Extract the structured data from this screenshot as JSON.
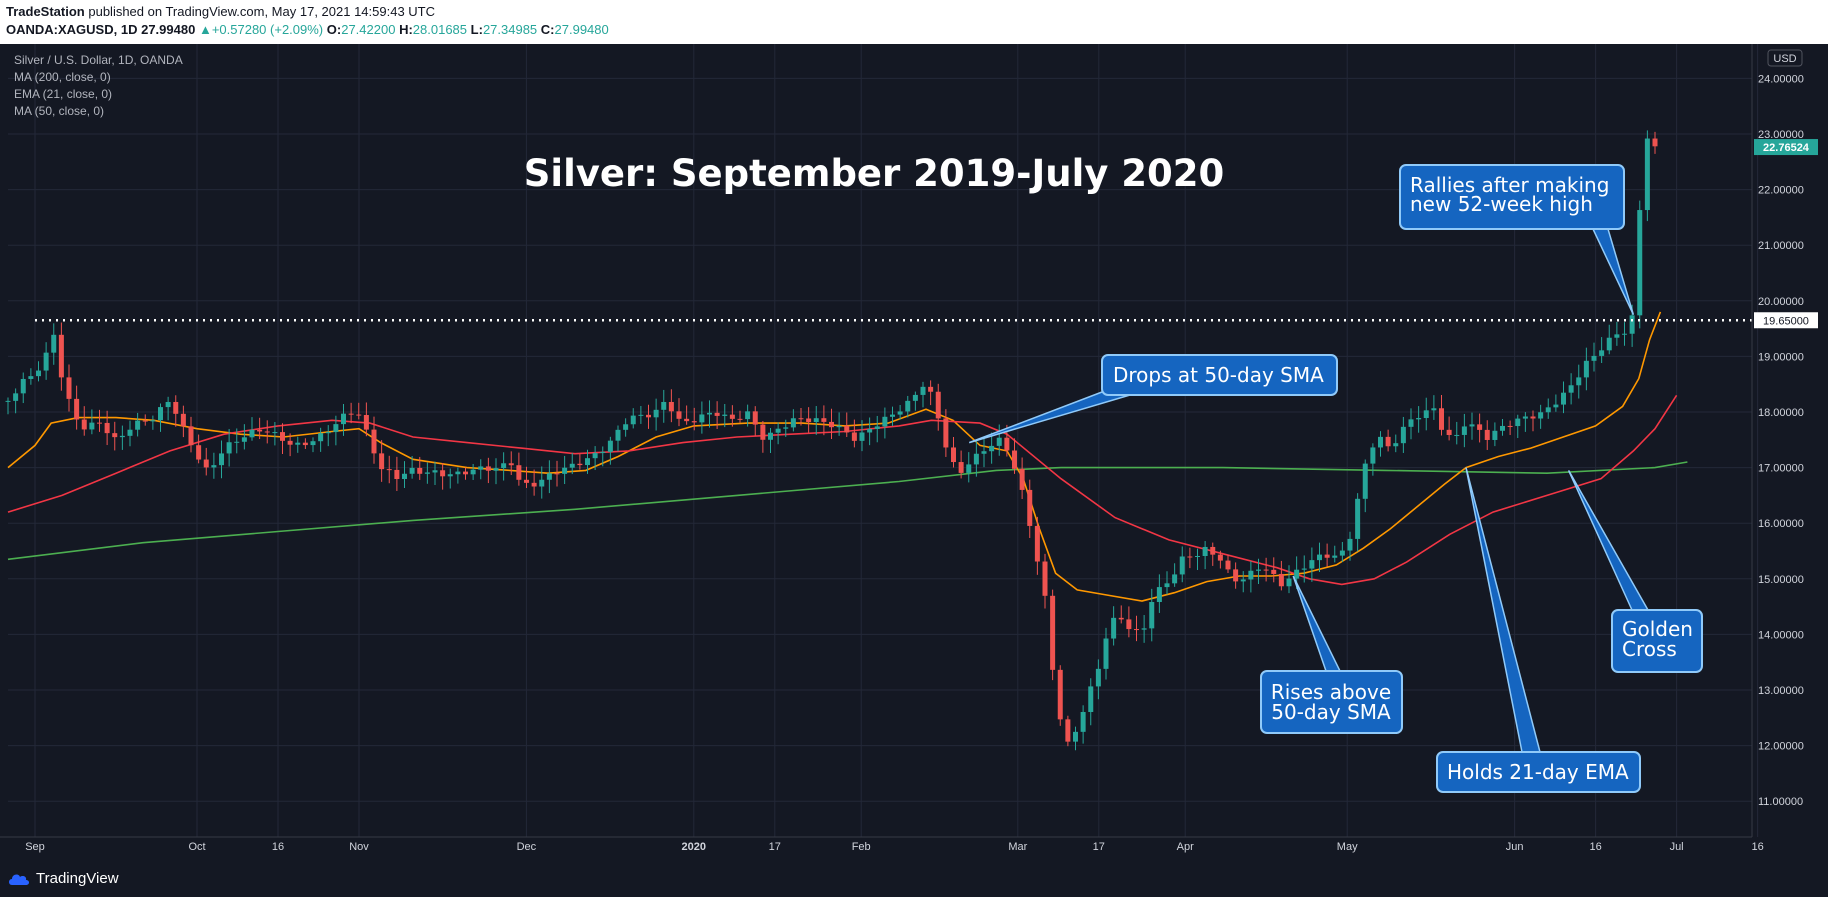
{
  "header": {
    "publisher": "TradeStation",
    "published_text": " published on TradingView.com, May 17, 2021 14:59:43 UTC",
    "symbol": "OANDA:XAGUSD, 1D",
    "last": "27.99480",
    "change": "+0.57280 (+2.09%)",
    "o_label": "O:",
    "o_value": "27.42200",
    "h_label": "H:",
    "h_value": "28.01685",
    "l_label": "L:",
    "l_value": "27.34985",
    "c_label": "C:",
    "c_value": "27.99480"
  },
  "legend": {
    "title": "Silver / U.S. Dollar, 1D, OANDA",
    "ma200": "MA (200, close, 0)",
    "ema21": "EMA (21, close, 0)",
    "ma50": "MA (50, close, 0)"
  },
  "footer": {
    "brand": "TradingView"
  },
  "colors": {
    "background": "#141823",
    "grid": "#232838",
    "up": "#26a69a",
    "down": "#ef5350",
    "ma200": "#4caf50",
    "ema21": "#ff9800",
    "ma50": "#f23645",
    "callout_fill": "#1565c0",
    "callout_border": "#90caf9"
  },
  "chart_data": {
    "type": "candlestick",
    "title": "Silver: September 2019-July 2020",
    "currency": "USD",
    "ylim": [
      10.5,
      24.5
    ],
    "y_ticks": [
      "24.00000",
      "23.00000",
      "22.00000",
      "21.00000",
      "20.00000",
      "19.00000",
      "18.00000",
      "17.00000",
      "16.00000",
      "15.00000",
      "14.00000",
      "13.00000",
      "12.00000",
      "11.00000"
    ],
    "x_ticks": [
      "Sep",
      "Oct",
      "16",
      "Nov",
      "Dec",
      "2020",
      "17",
      "Feb",
      "Mar",
      "17",
      "Apr",
      "May",
      "Jun",
      "16",
      "Jul",
      "16"
    ],
    "x_tick_days": [
      0,
      30,
      45,
      60,
      91,
      122,
      137,
      153,
      182,
      197,
      213,
      243,
      274,
      289,
      304,
      319
    ],
    "x_bold_ticks": [
      "2020"
    ],
    "last_price": {
      "label": "22.76524",
      "value": 22.76524
    },
    "level_line": {
      "label": "19.65000",
      "value": 19.65,
      "style": "dotted"
    },
    "x_range_days": [
      -5,
      330
    ],
    "close_path": [
      [
        -5,
        18.2
      ],
      [
        -2,
        18.5
      ],
      [
        0,
        18.6
      ],
      [
        2,
        18.9
      ],
      [
        3,
        19.65
      ],
      [
        4,
        19.0
      ],
      [
        5,
        18.6
      ],
      [
        7,
        18.0
      ],
      [
        9,
        17.8
      ],
      [
        12,
        17.9
      ],
      [
        15,
        17.5
      ],
      [
        18,
        17.7
      ],
      [
        22,
        17.8
      ],
      [
        25,
        18.2
      ],
      [
        27,
        17.8
      ],
      [
        30,
        17.3
      ],
      [
        32,
        17.0
      ],
      [
        35,
        17.4
      ],
      [
        38,
        17.5
      ],
      [
        42,
        17.6
      ],
      [
        45,
        17.5
      ],
      [
        48,
        17.4
      ],
      [
        52,
        17.6
      ],
      [
        55,
        17.8
      ],
      [
        58,
        18.0
      ],
      [
        60,
        17.9
      ],
      [
        62,
        17.4
      ],
      [
        64,
        16.9
      ],
      [
        67,
        16.8
      ],
      [
        70,
        17.0
      ],
      [
        74,
        17.0
      ],
      [
        78,
        16.9
      ],
      [
        82,
        16.9
      ],
      [
        86,
        16.9
      ],
      [
        88,
        17.1
      ],
      [
        90,
        16.7
      ],
      [
        93,
        16.8
      ],
      [
        96,
        17.0
      ],
      [
        100,
        17.05
      ],
      [
        103,
        17.1
      ],
      [
        106,
        17.3
      ],
      [
        108,
        17.6
      ],
      [
        110,
        17.9
      ],
      [
        113,
        18.0
      ],
      [
        115,
        18.1
      ],
      [
        117,
        18.3
      ],
      [
        119,
        17.9
      ],
      [
        121,
        17.8
      ],
      [
        123,
        17.85
      ],
      [
        126,
        17.9
      ],
      [
        129,
        17.8
      ],
      [
        132,
        18.0
      ],
      [
        135,
        17.6
      ],
      [
        138,
        17.8
      ],
      [
        141,
        17.9
      ],
      [
        144,
        17.8
      ],
      [
        147,
        17.7
      ],
      [
        150,
        17.6
      ],
      [
        152,
        17.5
      ],
      [
        155,
        17.8
      ],
      [
        158,
        18.0
      ],
      [
        162,
        18.2
      ],
      [
        165,
        18.5
      ],
      [
        167,
        17.9
      ],
      [
        169,
        17.2
      ],
      [
        171,
        16.8
      ],
      [
        173,
        17.1
      ],
      [
        175,
        17.3
      ],
      [
        177,
        17.5
      ],
      [
        179,
        17.6
      ],
      [
        181,
        17.2
      ],
      [
        183,
        16.5
      ],
      [
        185,
        15.6
      ],
      [
        187,
        14.6
      ],
      [
        189,
        12.8
      ],
      [
        191,
        11.9
      ],
      [
        193,
        12.3
      ],
      [
        195,
        12.9
      ],
      [
        197,
        13.5
      ],
      [
        199,
        14.3
      ],
      [
        201,
        14.4
      ],
      [
        203,
        14.1
      ],
      [
        205,
        14.0
      ],
      [
        207,
        14.6
      ],
      [
        209,
        14.8
      ],
      [
        211,
        15.0
      ],
      [
        213,
        15.4
      ],
      [
        215,
        15.4
      ],
      [
        217,
        15.6
      ],
      [
        219,
        15.5
      ],
      [
        221,
        15.2
      ],
      [
        223,
        15.0
      ],
      [
        225,
        15.1
      ],
      [
        227,
        15.2
      ],
      [
        229,
        15.0
      ],
      [
        231,
        14.8
      ],
      [
        233,
        15.0
      ],
      [
        235,
        15.2
      ],
      [
        237,
        15.4
      ],
      [
        239,
        15.5
      ],
      [
        241,
        15.5
      ],
      [
        243,
        15.6
      ],
      [
        245,
        16.5
      ],
      [
        247,
        17.3
      ],
      [
        249,
        17.5
      ],
      [
        251,
        17.2
      ],
      [
        253,
        17.6
      ],
      [
        255,
        17.8
      ],
      [
        257,
        18.0
      ],
      [
        259,
        18.1
      ],
      [
        261,
        17.7
      ],
      [
        263,
        17.6
      ],
      [
        265,
        17.9
      ],
      [
        267,
        17.7
      ],
      [
        269,
        17.5
      ],
      [
        271,
        17.6
      ],
      [
        273,
        17.7
      ],
      [
        275,
        17.8
      ],
      [
        277,
        17.9
      ],
      [
        279,
        18.0
      ],
      [
        281,
        18.2
      ],
      [
        283,
        18.4
      ],
      [
        285,
        18.6
      ],
      [
        287,
        18.9
      ],
      [
        289,
        19.0
      ],
      [
        291,
        19.2
      ],
      [
        293,
        19.3
      ],
      [
        295,
        19.4
      ],
      [
        296,
        19.7
      ],
      [
        297,
        21.3
      ],
      [
        298,
        22.9
      ],
      [
        299,
        23.0
      ],
      [
        300,
        22.77
      ]
    ],
    "series": [
      {
        "name": "MA (200, close, 0)",
        "color": "#4caf50",
        "points": [
          [
            -5,
            15.35
          ],
          [
            20,
            15.65
          ],
          [
            45,
            15.85
          ],
          [
            70,
            16.05
          ],
          [
            100,
            16.25
          ],
          [
            130,
            16.5
          ],
          [
            160,
            16.75
          ],
          [
            178,
            16.95
          ],
          [
            190,
            17.0
          ],
          [
            220,
            17.0
          ],
          [
            250,
            16.95
          ],
          [
            280,
            16.9
          ],
          [
            300,
            17.0
          ],
          [
            306,
            17.1
          ]
        ]
      },
      {
        "name": "EMA (21, close, 0)",
        "color": "#ff9800",
        "points": [
          [
            -5,
            17.0
          ],
          [
            0,
            17.4
          ],
          [
            3,
            17.8
          ],
          [
            8,
            17.9
          ],
          [
            15,
            17.9
          ],
          [
            22,
            17.85
          ],
          [
            30,
            17.7
          ],
          [
            38,
            17.6
          ],
          [
            46,
            17.55
          ],
          [
            55,
            17.65
          ],
          [
            60,
            17.7
          ],
          [
            64,
            17.45
          ],
          [
            70,
            17.15
          ],
          [
            80,
            17.0
          ],
          [
            88,
            16.95
          ],
          [
            95,
            16.9
          ],
          [
            102,
            16.95
          ],
          [
            108,
            17.2
          ],
          [
            115,
            17.55
          ],
          [
            122,
            17.75
          ],
          [
            132,
            17.8
          ],
          [
            142,
            17.8
          ],
          [
            150,
            17.75
          ],
          [
            158,
            17.8
          ],
          [
            165,
            18.05
          ],
          [
            170,
            17.85
          ],
          [
            175,
            17.4
          ],
          [
            180,
            17.3
          ],
          [
            183,
            16.8
          ],
          [
            186,
            15.9
          ],
          [
            189,
            15.1
          ],
          [
            193,
            14.8
          ],
          [
            199,
            14.7
          ],
          [
            205,
            14.6
          ],
          [
            211,
            14.75
          ],
          [
            217,
            14.95
          ],
          [
            223,
            15.05
          ],
          [
            229,
            15.05
          ],
          [
            235,
            15.1
          ],
          [
            241,
            15.25
          ],
          [
            246,
            15.55
          ],
          [
            251,
            15.9
          ],
          [
            256,
            16.3
          ],
          [
            261,
            16.7
          ],
          [
            265,
            17.0
          ],
          [
            271,
            17.2
          ],
          [
            277,
            17.35
          ],
          [
            283,
            17.55
          ],
          [
            289,
            17.75
          ],
          [
            294,
            18.1
          ],
          [
            297,
            18.6
          ],
          [
            299,
            19.3
          ],
          [
            301,
            19.8
          ]
        ]
      },
      {
        "name": "MA (50, close, 0)",
        "color": "#f23645",
        "points": [
          [
            -5,
            16.2
          ],
          [
            5,
            16.5
          ],
          [
            15,
            16.9
          ],
          [
            25,
            17.3
          ],
          [
            35,
            17.6
          ],
          [
            45,
            17.75
          ],
          [
            55,
            17.85
          ],
          [
            62,
            17.8
          ],
          [
            70,
            17.55
          ],
          [
            80,
            17.45
          ],
          [
            90,
            17.35
          ],
          [
            100,
            17.25
          ],
          [
            110,
            17.3
          ],
          [
            120,
            17.45
          ],
          [
            130,
            17.55
          ],
          [
            140,
            17.6
          ],
          [
            150,
            17.65
          ],
          [
            160,
            17.75
          ],
          [
            166,
            17.85
          ],
          [
            175,
            17.8
          ],
          [
            180,
            17.6
          ],
          [
            190,
            16.8
          ],
          [
            200,
            16.1
          ],
          [
            210,
            15.7
          ],
          [
            220,
            15.45
          ],
          [
            230,
            15.2
          ],
          [
            236,
            15.0
          ],
          [
            242,
            14.9
          ],
          [
            248,
            15.0
          ],
          [
            254,
            15.3
          ],
          [
            262,
            15.8
          ],
          [
            270,
            16.2
          ],
          [
            280,
            16.5
          ],
          [
            290,
            16.8
          ],
          [
            296,
            17.3
          ],
          [
            300,
            17.7
          ],
          [
            304,
            18.3
          ]
        ]
      }
    ],
    "annotations": [
      {
        "text": [
          "Silver: September 2019-July 2020"
        ],
        "type": "title"
      },
      {
        "text": [
          "Rallies after making",
          "new 52-week high"
        ],
        "target_day": 296,
        "target_price": 19.75
      },
      {
        "text": [
          "Drops at 50-day SMA"
        ],
        "target_day": 173,
        "target_price": 17.45
      },
      {
        "text": [
          "Rises above",
          "50-day SMA"
        ],
        "target_day": 233,
        "target_price": 15.05
      },
      {
        "text": [
          "Holds 21-day EMA"
        ],
        "target_day": 265,
        "target_price": 17.0
      },
      {
        "text": [
          "Golden",
          "Cross"
        ],
        "target_day": 284,
        "target_price": 16.95
      }
    ]
  }
}
